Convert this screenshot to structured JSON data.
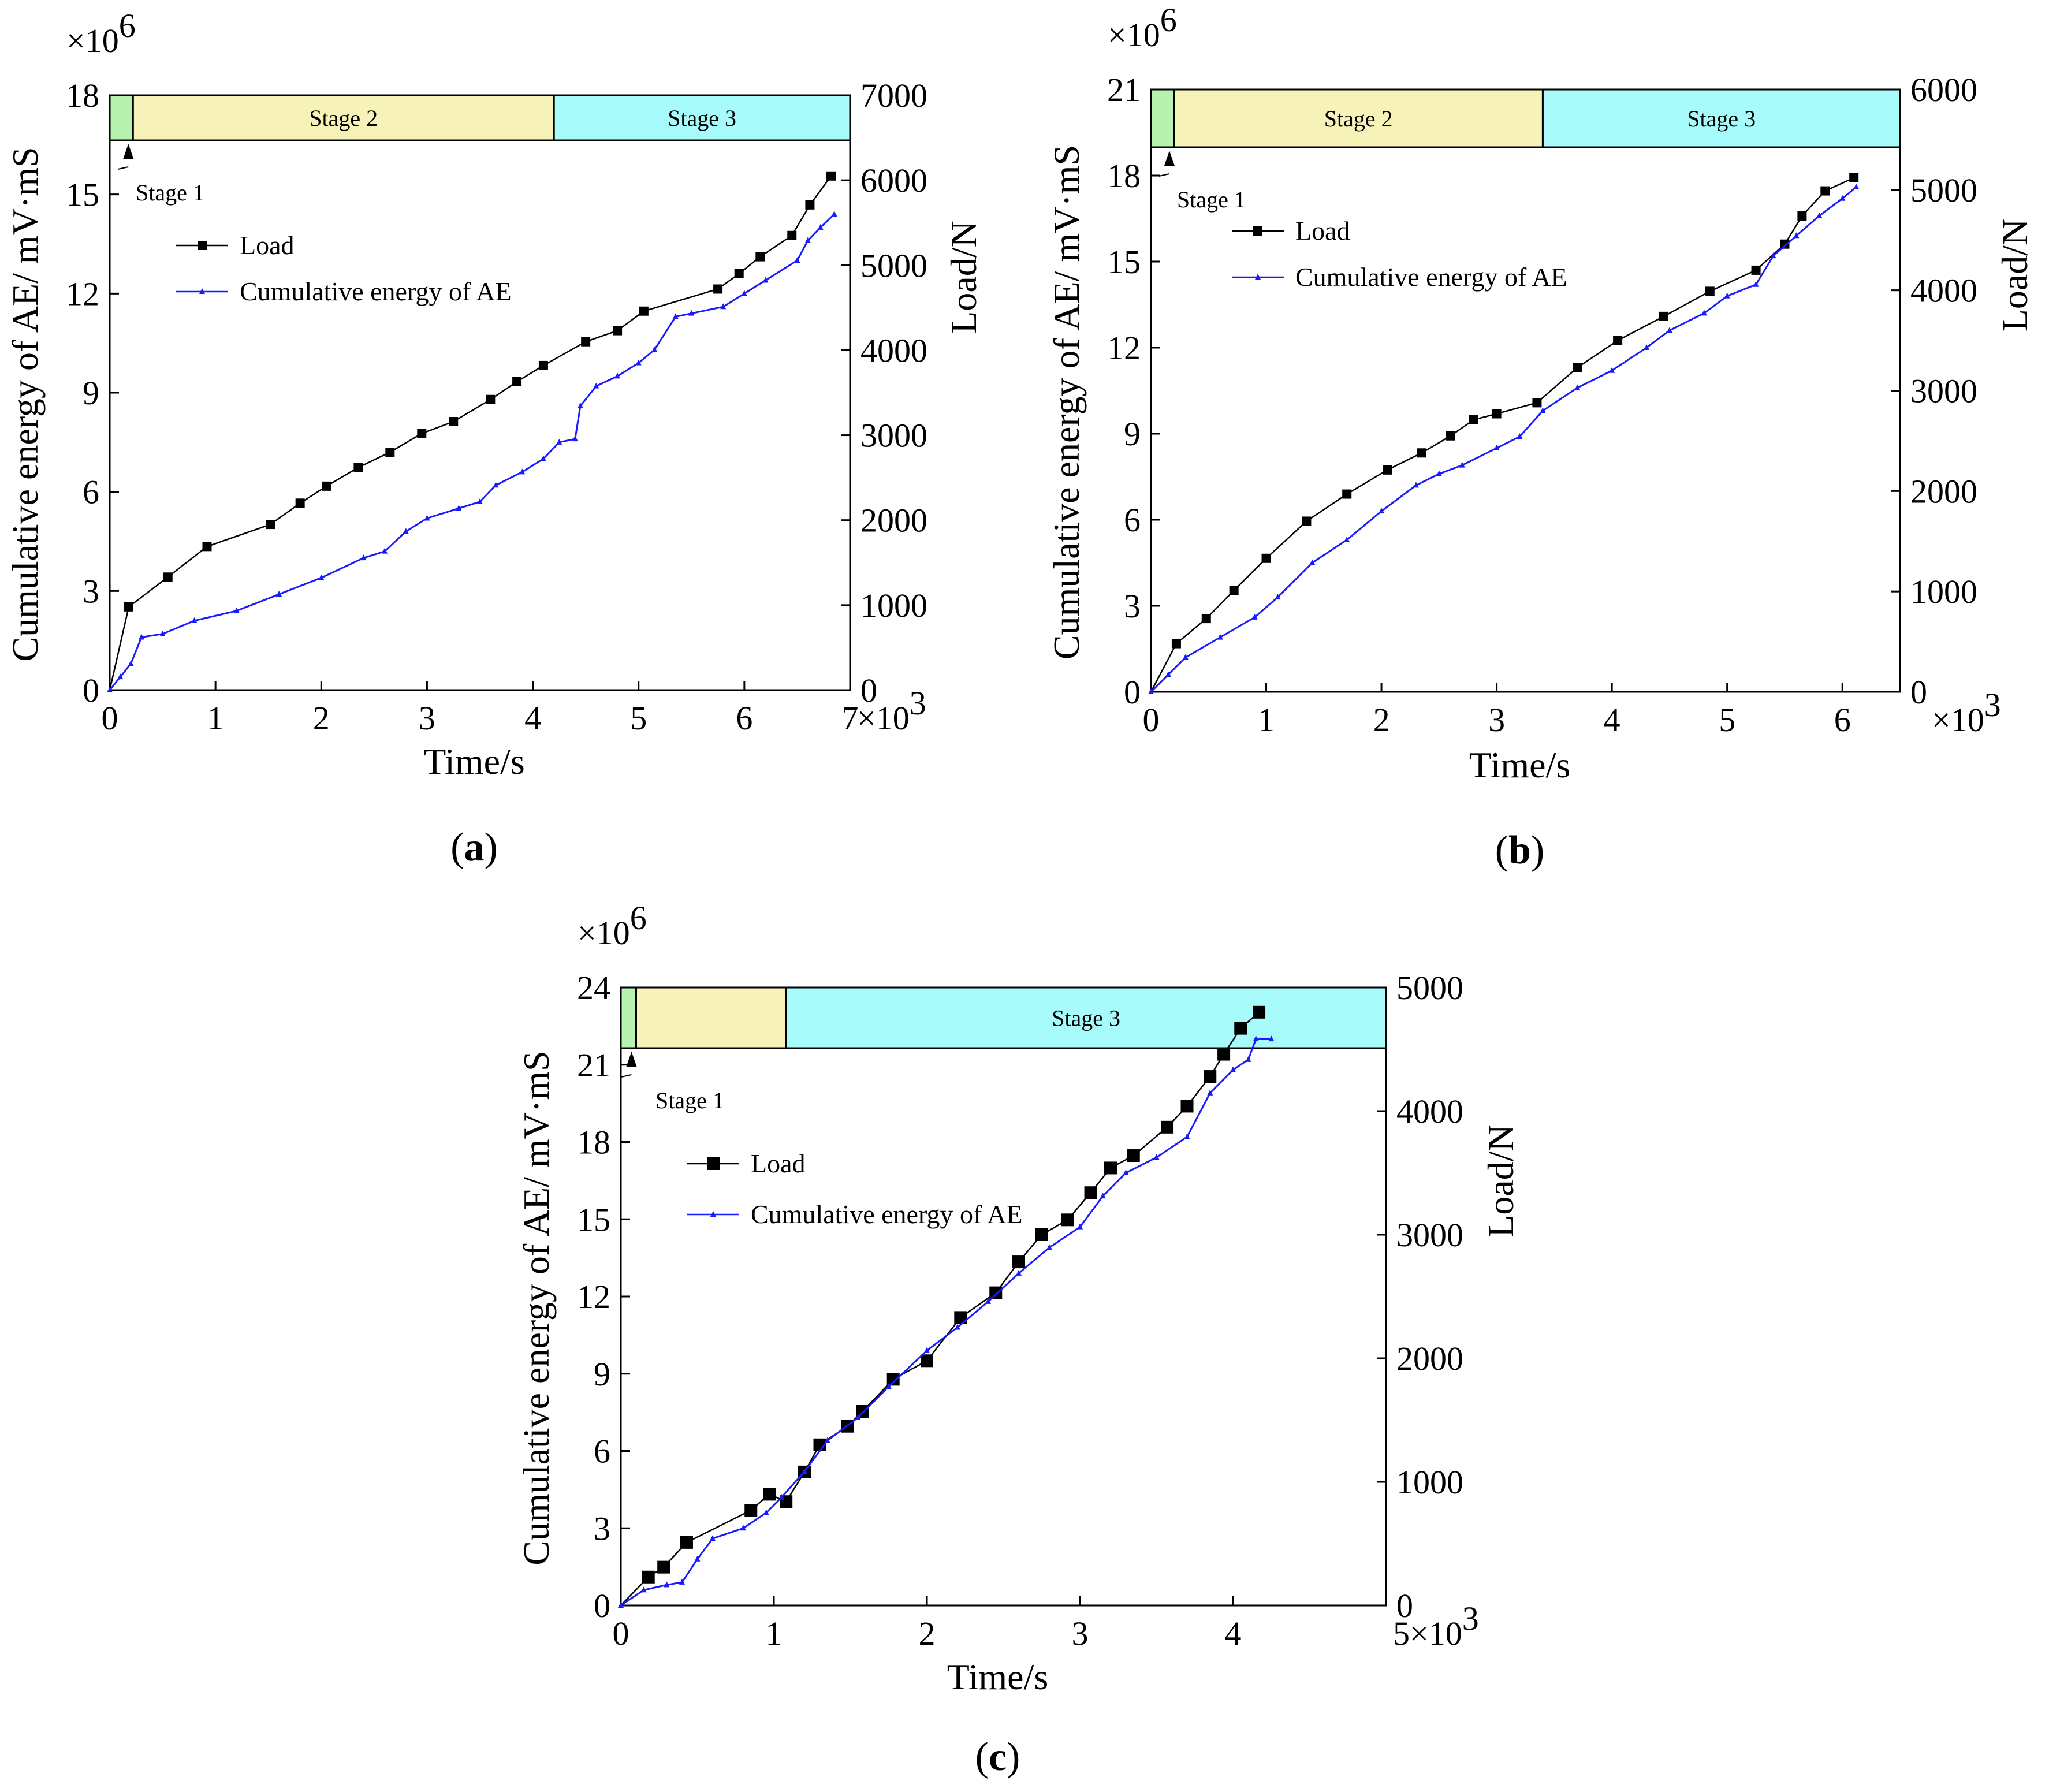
{
  "chart_data": [
    {
      "panel": "(a)",
      "type": "line",
      "dual_axis": true,
      "xlabel": "Time/s",
      "x_multiplier": "×10",
      "x_multiplier_exp": "3",
      "xlim": [
        0,
        7
      ],
      "xticks": [
        0,
        1,
        2,
        3,
        4,
        5,
        6,
        7
      ],
      "ylabel_left": "Cumulative energy of AE/ mV·mS",
      "y_multiplier": "×10",
      "y_multiplier_exp": "6",
      "ylim_left": [
        0,
        18
      ],
      "yticks_left": [
        0,
        3,
        6,
        9,
        12,
        15,
        18
      ],
      "ylabel_right": "Load/N",
      "ylim_right": [
        0,
        7000
      ],
      "yticks_right": [
        0,
        1000,
        2000,
        3000,
        4000,
        5000,
        6000,
        7000
      ],
      "stages": [
        {
          "label": "Stage 1",
          "start": 0,
          "end": 0.22,
          "color": "#b8f2b0",
          "callout": true
        },
        {
          "label": "Stage 2",
          "start": 0.22,
          "end": 4.2,
          "color": "#f7f2b8"
        },
        {
          "label": "Stage 3",
          "start": 4.2,
          "end": 7.0,
          "color": "#a8fbfb"
        }
      ],
      "series": [
        {
          "name": "Load",
          "axis": "right",
          "color": "#000000",
          "marker": "square",
          "x": [
            0.18,
            0.55,
            0.92,
            1.52,
            1.8,
            2.05,
            2.35,
            2.65,
            2.95,
            3.25,
            3.6,
            3.85,
            4.1,
            4.5,
            4.8,
            5.05,
            5.75,
            5.95,
            6.15,
            6.45,
            6.62,
            6.82
          ],
          "y": [
            980,
            1330,
            1690,
            1950,
            2200,
            2400,
            2620,
            2800,
            3020,
            3160,
            3420,
            3630,
            3820,
            4100,
            4230,
            4460,
            4720,
            4900,
            5100,
            5350,
            5710,
            6050
          ]
        },
        {
          "name": "Cumulative energy of AE",
          "axis": "left",
          "color": "#1a1aff",
          "marker": "triangle",
          "x": [
            0,
            0.1,
            0.2,
            0.3,
            0.5,
            0.8,
            1.2,
            1.6,
            2.0,
            2.4,
            2.6,
            2.8,
            3.0,
            3.3,
            3.5,
            3.65,
            3.9,
            4.1,
            4.25,
            4.4,
            4.45,
            4.6,
            4.8,
            5.0,
            5.15,
            5.35,
            5.5,
            5.8,
            6.0,
            6.2,
            6.5,
            6.6,
            6.72,
            6.85
          ],
          "y": [
            0,
            0.4,
            0.8,
            1.6,
            1.7,
            2.1,
            2.4,
            2.9,
            3.4,
            4.0,
            4.2,
            4.8,
            5.2,
            5.5,
            5.7,
            6.2,
            6.6,
            7.0,
            7.5,
            7.6,
            8.6,
            9.2,
            9.5,
            9.9,
            10.3,
            11.3,
            11.4,
            11.6,
            12.0,
            12.4,
            13.0,
            13.6,
            14.0,
            14.4
          ]
        }
      ],
      "legend_position": "upper-left"
    },
    {
      "panel": "(b)",
      "type": "line",
      "dual_axis": true,
      "xlabel": "Time/s",
      "x_multiplier": "×10",
      "x_multiplier_exp": "3",
      "xlim": [
        0,
        6.5
      ],
      "xticks": [
        0,
        1,
        2,
        3,
        4,
        5,
        6
      ],
      "ylabel_left": "Cumulative energy of AE/ mV·mS",
      "y_multiplier": "×10",
      "y_multiplier_exp": "6",
      "ylim_left": [
        0,
        21
      ],
      "yticks_left": [
        0,
        3,
        6,
        9,
        12,
        15,
        18,
        21
      ],
      "ylabel_right": "Load/N",
      "ylim_right": [
        0,
        6000
      ],
      "yticks_right": [
        0,
        1000,
        2000,
        3000,
        4000,
        5000,
        6000
      ],
      "stages": [
        {
          "label": "Stage 1",
          "start": 0,
          "end": 0.2,
          "color": "#b8f2b0",
          "callout": true
        },
        {
          "label": "Stage 2",
          "start": 0.2,
          "end": 3.4,
          "color": "#f7f2b8"
        },
        {
          "label": "Stage 3",
          "start": 3.4,
          "end": 6.5,
          "color": "#a8fbfb"
        }
      ],
      "series": [
        {
          "name": "Load",
          "axis": "right",
          "color": "#000000",
          "marker": "square",
          "x": [
            0.22,
            0.48,
            0.72,
            1.0,
            1.35,
            1.7,
            2.05,
            2.35,
            2.6,
            2.8,
            3.0,
            3.35,
            3.7,
            4.05,
            4.45,
            4.85,
            5.25,
            5.5,
            5.65,
            5.85,
            6.1
          ],
          "y": [
            480,
            730,
            1010,
            1330,
            1700,
            1970,
            2210,
            2380,
            2550,
            2710,
            2770,
            2880,
            3230,
            3500,
            3740,
            3990,
            4200,
            4460,
            4740,
            4990,
            5120
          ]
        },
        {
          "name": "Cumulative energy of AE",
          "axis": "left",
          "color": "#1a1aff",
          "marker": "triangle",
          "x": [
            0,
            0.15,
            0.3,
            0.6,
            0.9,
            1.1,
            1.4,
            1.7,
            2.0,
            2.3,
            2.5,
            2.7,
            3.0,
            3.2,
            3.4,
            3.7,
            4.0,
            4.3,
            4.5,
            4.8,
            5.0,
            5.25,
            5.4,
            5.6,
            5.8,
            6.0,
            6.12
          ],
          "y": [
            0,
            0.6,
            1.2,
            1.9,
            2.6,
            3.3,
            4.5,
            5.3,
            6.3,
            7.2,
            7.6,
            7.9,
            8.5,
            8.9,
            9.8,
            10.6,
            11.2,
            12.0,
            12.6,
            13.2,
            13.8,
            14.2,
            15.2,
            15.9,
            16.6,
            17.2,
            17.6
          ]
        }
      ],
      "legend_position": "upper-left"
    },
    {
      "panel": "(c)",
      "type": "line",
      "dual_axis": true,
      "xlabel": "Time/s",
      "x_multiplier": "5×10",
      "x_multiplier_exp": "3",
      "xlim": [
        0,
        5
      ],
      "xticks": [
        0,
        1,
        2,
        3,
        4
      ],
      "ylabel_left": "Cumulative energy of AE/ mV·mS",
      "y_multiplier": "×10",
      "y_multiplier_exp": "6",
      "ylim_left": [
        0,
        24
      ],
      "yticks_left": [
        0,
        3,
        6,
        9,
        12,
        15,
        18,
        21,
        24
      ],
      "ylabel_right": "Load/N",
      "ylim_right": [
        0,
        5000
      ],
      "yticks_right": [
        0,
        1000,
        2000,
        3000,
        4000,
        5000
      ],
      "stages": [
        {
          "label": "Stage 1",
          "start": 0,
          "end": 0.1,
          "color": "#b8f2b0",
          "callout": true
        },
        {
          "label": "",
          "start": 0.1,
          "end": 1.08,
          "color": "#f7f2b8"
        },
        {
          "label": "Stage 3",
          "start": 1.08,
          "end": 5.0,
          "color": "#a8fbfb"
        }
      ],
      "series": [
        {
          "name": "Load",
          "axis": "right",
          "color": "#000000",
          "marker": "square",
          "x": [
            0.18,
            0.28,
            0.43,
            0.85,
            0.97,
            1.08,
            1.2,
            1.3,
            1.48,
            1.58,
            1.78,
            2.0,
            2.22,
            2.45,
            2.6,
            2.75,
            2.92,
            3.07,
            3.2,
            3.35,
            3.57,
            3.7,
            3.85,
            3.94,
            4.05,
            4.17
          ],
          "y": [
            230,
            310,
            510,
            770,
            900,
            840,
            1080,
            1300,
            1450,
            1570,
            1830,
            1980,
            2330,
            2530,
            2780,
            3000,
            3120,
            3340,
            3540,
            3640,
            3870,
            4040,
            4280,
            4460,
            4670,
            4800
          ]
        },
        {
          "name": "Cumulative energy of AE",
          "axis": "left",
          "color": "#1a1aff",
          "marker": "triangle",
          "x": [
            0,
            0.15,
            0.3,
            0.4,
            0.5,
            0.6,
            0.8,
            0.95,
            1.05,
            1.2,
            1.35,
            1.55,
            1.75,
            2.0,
            2.2,
            2.4,
            2.6,
            2.8,
            3.0,
            3.15,
            3.3,
            3.5,
            3.7,
            3.85,
            4.0,
            4.1,
            4.15,
            4.25
          ],
          "y": [
            0,
            0.6,
            0.8,
            0.9,
            1.8,
            2.6,
            3.0,
            3.6,
            4.2,
            5.2,
            6.4,
            7.3,
            8.5,
            9.9,
            10.8,
            11.8,
            12.9,
            13.9,
            14.7,
            15.9,
            16.8,
            17.4,
            18.2,
            19.9,
            20.8,
            21.2,
            22.0,
            22.0
          ]
        }
      ],
      "legend_position": "upper-left"
    }
  ]
}
